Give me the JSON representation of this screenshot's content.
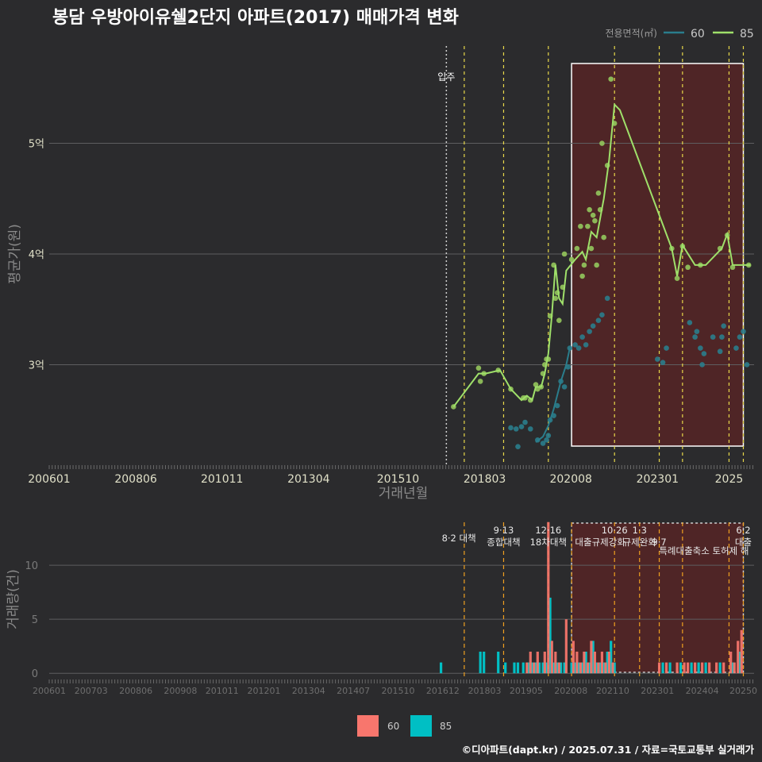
{
  "title": "봉담 우방아이유쉘2단지 아파트(2017) 매매가격 변화",
  "credit": "©디아파트(dapt.kr) / 2025.07.31 / 자료=국토교통부 실거래가",
  "colors": {
    "s60": "#2a7d8c",
    "s85": "#9fe06a",
    "bar60": "#f8766d",
    "bar85": "#00bfc4",
    "policy": "#e8d84a",
    "policy2": "#f0a020",
    "shade": "#5c2424"
  },
  "top_chart": {
    "ylabel": "평균가(원)",
    "xlabel": "거래년월",
    "legend_title": "전용면적(㎡)",
    "legend_items": [
      "60",
      "85"
    ],
    "yticks": [
      {
        "v": 3.0,
        "label": "3억"
      },
      {
        "v": 4.0,
        "label": "4억"
      },
      {
        "v": 5.0,
        "label": "5억"
      }
    ],
    "ylim": [
      2.1,
      5.9
    ],
    "xlim": [
      2006.0,
      2025.7
    ],
    "xticks": [
      {
        "v": 2006.0,
        "label": "200601"
      },
      {
        "v": 2008.42,
        "label": "200806"
      },
      {
        "v": 2010.83,
        "label": "201011"
      },
      {
        "v": 2013.25,
        "label": "201304"
      },
      {
        "v": 2015.75,
        "label": "201510"
      },
      {
        "v": 2018.17,
        "label": "201803"
      },
      {
        "v": 2020.58,
        "label": "202008"
      },
      {
        "v": 2023.0,
        "label": "202301"
      },
      {
        "v": 2025.0,
        "label": "2025"
      }
    ],
    "move_in": {
      "x": 2017.1,
      "label": "입주"
    },
    "policy_lines": [
      2017.6,
      2018.7,
      2019.95,
      2021.8,
      2023.05,
      2023.7,
      2025.0,
      2025.4
    ],
    "highlight": [
      2020.6,
      2025.4
    ],
    "series_60_line": [
      [
        2019.6,
        2.3
      ],
      [
        2019.8,
        2.35
      ],
      [
        2019.95,
        2.45
      ],
      [
        2020.1,
        2.6
      ],
      [
        2020.3,
        2.85
      ],
      [
        2020.45,
        3.0
      ],
      [
        2020.55,
        3.15
      ]
    ],
    "series_60_points": [
      [
        2018.9,
        2.43
      ],
      [
        2019.05,
        2.42
      ],
      [
        2019.1,
        2.26
      ],
      [
        2019.2,
        2.44
      ],
      [
        2019.3,
        2.48
      ],
      [
        2019.45,
        2.42
      ],
      [
        2019.65,
        2.32
      ],
      [
        2019.8,
        2.29
      ],
      [
        2019.9,
        2.32
      ],
      [
        2019.95,
        2.36
      ],
      [
        2020.0,
        2.5
      ],
      [
        2020.1,
        2.54
      ],
      [
        2020.2,
        2.63
      ],
      [
        2020.3,
        2.85
      ],
      [
        2020.4,
        2.8
      ],
      [
        2020.5,
        2.98
      ],
      [
        2020.55,
        3.15
      ],
      [
        2020.7,
        3.18
      ],
      [
        2020.8,
        3.15
      ],
      [
        2020.9,
        3.25
      ],
      [
        2021.0,
        3.18
      ],
      [
        2021.1,
        3.3
      ],
      [
        2021.2,
        3.35
      ],
      [
        2021.35,
        3.4
      ],
      [
        2021.45,
        3.45
      ],
      [
        2021.6,
        3.6
      ],
      [
        2023.0,
        3.05
      ],
      [
        2023.15,
        3.02
      ],
      [
        2023.25,
        3.15
      ],
      [
        2023.9,
        3.38
      ],
      [
        2024.05,
        3.25
      ],
      [
        2024.1,
        3.3
      ],
      [
        2024.2,
        3.15
      ],
      [
        2024.25,
        3.0
      ],
      [
        2024.3,
        3.1
      ],
      [
        2024.55,
        3.25
      ],
      [
        2024.75,
        3.12
      ],
      [
        2024.8,
        3.25
      ],
      [
        2024.85,
        3.35
      ],
      [
        2025.2,
        3.15
      ],
      [
        2025.3,
        3.25
      ],
      [
        2025.4,
        3.3
      ],
      [
        2025.5,
        3.0
      ]
    ],
    "series_85_line": [
      [
        2017.3,
        2.62
      ],
      [
        2018.0,
        2.92
      ],
      [
        2018.2,
        2.92
      ],
      [
        2018.6,
        2.95
      ],
      [
        2018.9,
        2.78
      ],
      [
        2019.2,
        2.68
      ],
      [
        2019.35,
        2.72
      ],
      [
        2019.5,
        2.68
      ],
      [
        2019.6,
        2.8
      ],
      [
        2019.75,
        2.8
      ],
      [
        2019.85,
        2.92
      ],
      [
        2019.95,
        3.1
      ],
      [
        2020.05,
        3.45
      ],
      [
        2020.15,
        3.9
      ],
      [
        2020.25,
        3.6
      ],
      [
        2020.35,
        3.55
      ],
      [
        2020.45,
        3.85
      ],
      [
        2020.7,
        3.95
      ],
      [
        2020.9,
        4.02
      ],
      [
        2021.0,
        3.95
      ],
      [
        2021.15,
        4.2
      ],
      [
        2021.3,
        4.15
      ],
      [
        2021.5,
        4.5
      ],
      [
        2021.65,
        4.85
      ],
      [
        2021.8,
        5.35
      ],
      [
        2021.95,
        5.3
      ],
      [
        2023.4,
        4.05
      ],
      [
        2023.55,
        3.8
      ],
      [
        2023.7,
        4.08
      ],
      [
        2024.05,
        3.9
      ],
      [
        2024.35,
        3.9
      ],
      [
        2024.8,
        4.05
      ],
      [
        2024.95,
        4.18
      ],
      [
        2025.1,
        3.9
      ],
      [
        2025.6,
        3.9
      ]
    ],
    "series_85_points": [
      [
        2017.3,
        2.62
      ],
      [
        2018.0,
        2.97
      ],
      [
        2018.05,
        2.85
      ],
      [
        2018.15,
        2.92
      ],
      [
        2018.55,
        2.95
      ],
      [
        2018.9,
        2.78
      ],
      [
        2019.25,
        2.7
      ],
      [
        2019.3,
        2.7
      ],
      [
        2019.45,
        2.68
      ],
      [
        2019.6,
        2.82
      ],
      [
        2019.65,
        2.78
      ],
      [
        2019.75,
        2.8
      ],
      [
        2019.8,
        2.92
      ],
      [
        2019.85,
        3.0
      ],
      [
        2019.9,
        3.05
      ],
      [
        2019.95,
        3.05
      ],
      [
        2020.0,
        3.44
      ],
      [
        2020.1,
        3.9
      ],
      [
        2020.15,
        3.6
      ],
      [
        2020.2,
        3.65
      ],
      [
        2020.25,
        3.4
      ],
      [
        2020.35,
        3.7
      ],
      [
        2020.4,
        4.0
      ],
      [
        2020.6,
        3.95
      ],
      [
        2020.75,
        4.05
      ],
      [
        2020.85,
        4.25
      ],
      [
        2020.9,
        3.8
      ],
      [
        2020.95,
        3.9
      ],
      [
        2021.05,
        4.25
      ],
      [
        2021.1,
        4.4
      ],
      [
        2021.15,
        4.05
      ],
      [
        2021.2,
        4.35
      ],
      [
        2021.25,
        4.3
      ],
      [
        2021.3,
        3.9
      ],
      [
        2021.35,
        4.55
      ],
      [
        2021.4,
        4.4
      ],
      [
        2021.45,
        5.0
      ],
      [
        2021.5,
        4.15
      ],
      [
        2021.6,
        4.8
      ],
      [
        2021.7,
        5.58
      ],
      [
        2021.8,
        5.18
      ],
      [
        2023.4,
        4.05
      ],
      [
        2023.55,
        3.78
      ],
      [
        2023.7,
        4.07
      ],
      [
        2023.85,
        3.88
      ],
      [
        2024.2,
        3.9
      ],
      [
        2024.75,
        4.05
      ],
      [
        2024.95,
        4.17
      ],
      [
        2025.1,
        3.88
      ],
      [
        2025.55,
        3.9
      ]
    ]
  },
  "bottom_chart": {
    "ylabel": "거래량(건)",
    "yticks": [
      {
        "v": 0,
        "label": "0"
      },
      {
        "v": 5,
        "label": "5"
      },
      {
        "v": 10,
        "label": "10"
      }
    ],
    "ylim": [
      -0.5,
      14.2
    ],
    "xticks": [
      {
        "v": 2006.0,
        "label": "200601"
      },
      {
        "v": 2007.17,
        "label": "200703"
      },
      {
        "v": 2008.42,
        "label": "200806"
      },
      {
        "v": 2009.67,
        "label": "200908"
      },
      {
        "v": 2010.83,
        "label": "201011"
      },
      {
        "v": 2012.0,
        "label": "201201"
      },
      {
        "v": 2013.25,
        "label": "201304"
      },
      {
        "v": 2014.5,
        "label": "201407"
      },
      {
        "v": 2015.75,
        "label": "201510"
      },
      {
        "v": 2017.0,
        "label": "201612"
      },
      {
        "v": 2018.17,
        "label": "201803"
      },
      {
        "v": 2019.33,
        "label": "201905"
      },
      {
        "v": 2020.58,
        "label": "202008"
      },
      {
        "v": 2021.75,
        "label": "202110"
      },
      {
        "v": 2023.0,
        "label": "202301"
      },
      {
        "v": 2024.25,
        "label": "202404"
      },
      {
        "v": 2025.4,
        "label": "20250"
      }
    ],
    "policy_lines": [
      2017.6,
      2018.7,
      2019.95,
      2020.6,
      2021.8,
      2022.5,
      2023.05,
      2023.7,
      2025.0,
      2025.4
    ],
    "highlight": [
      2020.6,
      2025.4
    ],
    "annotations": [
      {
        "x": 2017.45,
        "row": 1,
        "text": "8·2 대책"
      },
      {
        "x": 2018.7,
        "row": 0,
        "text": "9·13"
      },
      {
        "x": 2018.7,
        "row": 1.5,
        "text": "종합대책"
      },
      {
        "x": 2019.95,
        "row": 0,
        "text": "12·16"
      },
      {
        "x": 2019.95,
        "row": 1.5,
        "text": "18차대책"
      },
      {
        "x": 2021.8,
        "row": 0,
        "text": "10·26"
      },
      {
        "x": 2021.4,
        "row": 1.5,
        "text": "대출규제강화"
      },
      {
        "x": 2022.5,
        "row": 0,
        "text": "1·3"
      },
      {
        "x": 2022.5,
        "row": 1.5,
        "text": "규제완화"
      },
      {
        "x": 2023.05,
        "row": 1.5,
        "text": "9·7"
      },
      {
        "x": 2024.3,
        "row": 2.6,
        "text": "특례대출축소 토허제 해"
      },
      {
        "x": 2025.4,
        "row": 0,
        "text": "6·2"
      },
      {
        "x": 2025.4,
        "row": 1.5,
        "text": "대출"
      }
    ],
    "bars_60": [
      [
        2019.35,
        1
      ],
      [
        2019.45,
        2
      ],
      [
        2019.55,
        1
      ],
      [
        2019.65,
        2
      ],
      [
        2019.85,
        2
      ],
      [
        2019.95,
        14
      ],
      [
        2020.05,
        3
      ],
      [
        2020.15,
        2
      ],
      [
        2020.25,
        1
      ],
      [
        2020.45,
        5
      ],
      [
        2020.65,
        3
      ],
      [
        2020.75,
        2
      ],
      [
        2020.85,
        1
      ],
      [
        2020.95,
        2
      ],
      [
        2021.05,
        1
      ],
      [
        2021.15,
        3
      ],
      [
        2021.25,
        2
      ],
      [
        2021.35,
        1
      ],
      [
        2021.45,
        2
      ],
      [
        2021.55,
        1
      ],
      [
        2021.65,
        2
      ],
      [
        2021.75,
        1
      ],
      [
        2023.05,
        1
      ],
      [
        2023.25,
        1
      ],
      [
        2023.55,
        1
      ],
      [
        2023.75,
        1
      ],
      [
        2023.85,
        1
      ],
      [
        2024.05,
        1
      ],
      [
        2024.25,
        1
      ],
      [
        2024.45,
        1
      ],
      [
        2024.65,
        1
      ],
      [
        2024.85,
        1
      ],
      [
        2025.05,
        2
      ],
      [
        2025.15,
        1
      ],
      [
        2025.25,
        3
      ],
      [
        2025.35,
        4
      ]
    ],
    "bars_85": [
      [
        2016.95,
        1
      ],
      [
        2018.05,
        2
      ],
      [
        2018.15,
        2
      ],
      [
        2018.55,
        2
      ],
      [
        2018.75,
        1
      ],
      [
        2019.0,
        1
      ],
      [
        2019.1,
        1
      ],
      [
        2019.25,
        1
      ],
      [
        2019.4,
        1
      ],
      [
        2019.5,
        1
      ],
      [
        2019.6,
        1
      ],
      [
        2019.7,
        1
      ],
      [
        2019.8,
        1
      ],
      [
        2019.9,
        1
      ],
      [
        2020.0,
        7
      ],
      [
        2020.1,
        1
      ],
      [
        2020.2,
        1
      ],
      [
        2020.3,
        1
      ],
      [
        2020.4,
        1
      ],
      [
        2020.6,
        1
      ],
      [
        2020.7,
        1
      ],
      [
        2020.8,
        1
      ],
      [
        2020.9,
        1
      ],
      [
        2021.0,
        2
      ],
      [
        2021.1,
        1
      ],
      [
        2021.2,
        3
      ],
      [
        2021.3,
        1
      ],
      [
        2021.4,
        1
      ],
      [
        2021.5,
        1
      ],
      [
        2021.6,
        2
      ],
      [
        2021.7,
        3
      ],
      [
        2021.8,
        1
      ],
      [
        2023.15,
        1
      ],
      [
        2023.35,
        1
      ],
      [
        2023.65,
        1
      ],
      [
        2023.95,
        1
      ],
      [
        2024.15,
        1
      ],
      [
        2024.35,
        1
      ],
      [
        2024.75,
        1
      ],
      [
        2025.1,
        1
      ],
      [
        2025.3,
        2
      ]
    ],
    "legend_items": [
      "60",
      "85"
    ]
  }
}
